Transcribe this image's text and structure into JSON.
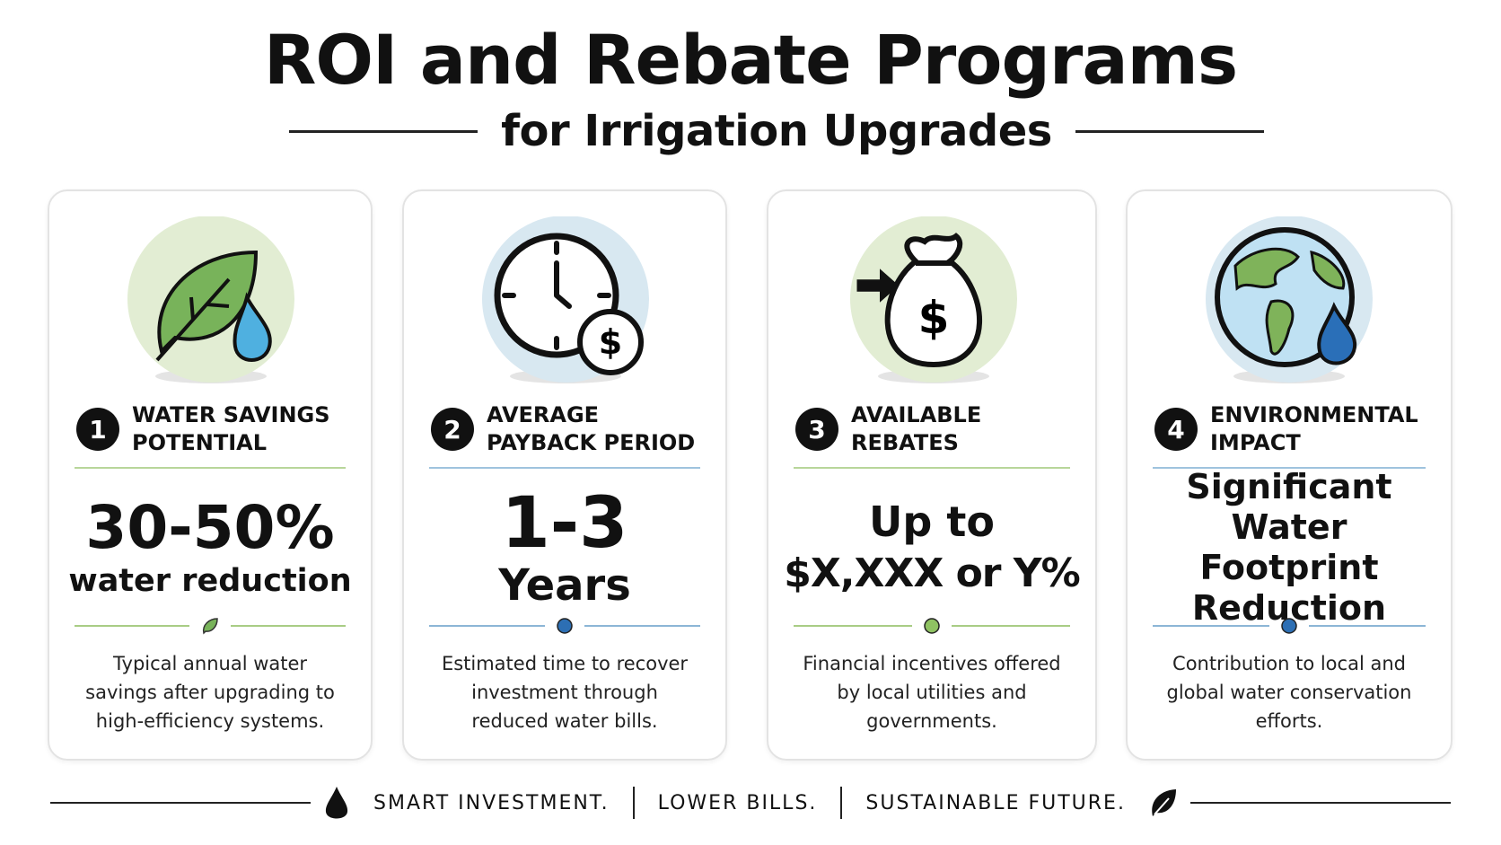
{
  "header": {
    "title": "ROI and Rebate Programs",
    "subtitle": "for Irrigation Upgrades"
  },
  "cards": [
    {
      "number": "1",
      "heading": "WATER SAVINGS POTENTIAL",
      "value": [
        "30-50%",
        "water reduction"
      ],
      "description": "Typical annual water savings after upgrading to high-efficiency systems."
    },
    {
      "number": "2",
      "heading": "AVERAGE PAYBACK PERIOD",
      "value": [
        "1-3",
        "Years"
      ],
      "description": "Estimated time to recover investment through reduced water bills."
    },
    {
      "number": "3",
      "heading": "AVAILABLE REBATES",
      "value": [
        "Up to",
        "$X,XXX or Y%"
      ],
      "description": "Financial incentives offered by local utilities and governments."
    },
    {
      "number": "4",
      "heading": "ENVIRONMENTAL IMPACT",
      "value": [
        "Significant Water Footprint Reduction"
      ],
      "description": "Contribution to local and global water conservation efforts."
    }
  ],
  "footer": {
    "items": [
      "SMART INVESTMENT.",
      "LOWER BILLS.",
      "SUSTAINABLE FUTURE."
    ]
  }
}
